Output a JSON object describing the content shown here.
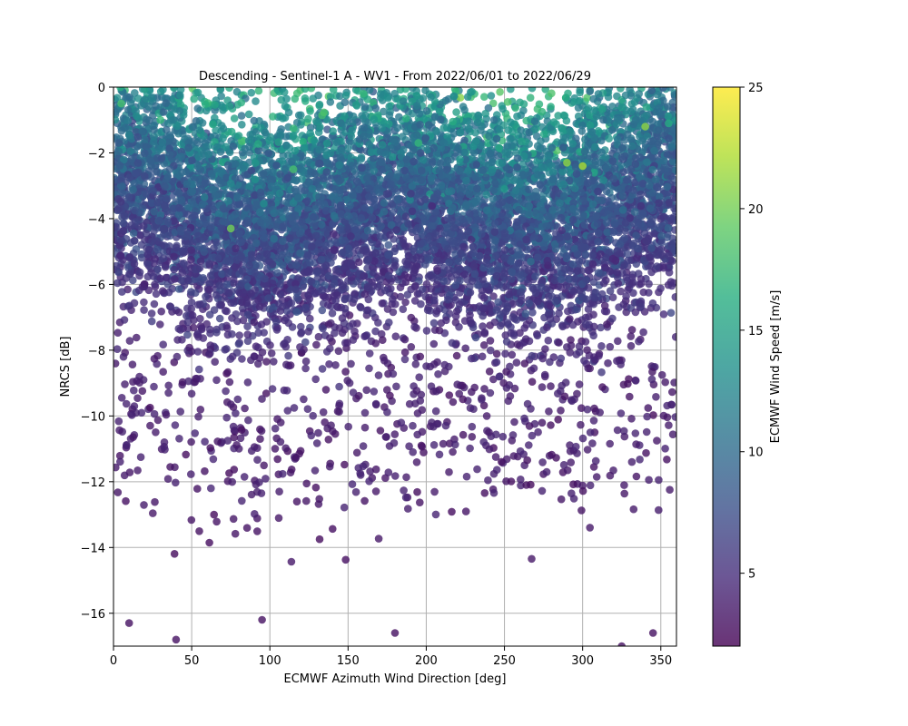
{
  "chart_data": {
    "type": "scatter",
    "title": "Descending - Sentinel-1 A - WV1 - From 2022/06/01 to 2022/06/29",
    "xlabel": "ECMWF Azimuth Wind Direction [deg]",
    "ylabel": "NRCS [dB]",
    "xlim": [
      0,
      360
    ],
    "ylim": [
      -17,
      0
    ],
    "xticks": [
      0,
      50,
      100,
      150,
      200,
      250,
      300,
      350
    ],
    "yticks": [
      -16,
      -14,
      -12,
      -10,
      -8,
      -6,
      -4,
      -2,
      0
    ],
    "grid": true,
    "colorbar": {
      "label": "ECMWF Wind Speed [m/s]",
      "range": [
        2,
        25
      ],
      "ticks": [
        5,
        10,
        15,
        20,
        25
      ],
      "colormap": "viridis",
      "alpha": 0.8
    },
    "point_model": {
      "description_of_pattern": "NRCS rises with wind speed; upwind (0/360 deg) highest, downwind (180 deg) secondary peak, crosswind (~90/270 deg) lowest",
      "count": 9000,
      "samples": [
        {
          "x": 5,
          "y": -0.5,
          "speed": 18
        },
        {
          "x": 30,
          "y": -1.0,
          "speed": 17
        },
        {
          "x": 340,
          "y": -1.2,
          "speed": 21
        },
        {
          "x": 355,
          "y": -1.1,
          "speed": 16
        },
        {
          "x": 115,
          "y": -2.5,
          "speed": 18
        },
        {
          "x": 195,
          "y": -1.7,
          "speed": 17
        },
        {
          "x": 290,
          "y": -2.3,
          "speed": 21
        },
        {
          "x": 300,
          "y": -2.4,
          "speed": 22
        },
        {
          "x": 75,
          "y": -4.3,
          "speed": 20
        },
        {
          "x": 100,
          "y": -4.2,
          "speed": 9
        },
        {
          "x": 250,
          "y": -3.1,
          "speed": 14
        },
        {
          "x": 10,
          "y": -16.3,
          "speed": 3
        },
        {
          "x": 40,
          "y": -16.8,
          "speed": 3
        },
        {
          "x": 95,
          "y": -16.2,
          "speed": 3
        },
        {
          "x": 180,
          "y": -16.6,
          "speed": 3
        },
        {
          "x": 325,
          "y": -17.0,
          "speed": 3
        },
        {
          "x": 345,
          "y": -16.6,
          "speed": 3
        }
      ]
    }
  }
}
